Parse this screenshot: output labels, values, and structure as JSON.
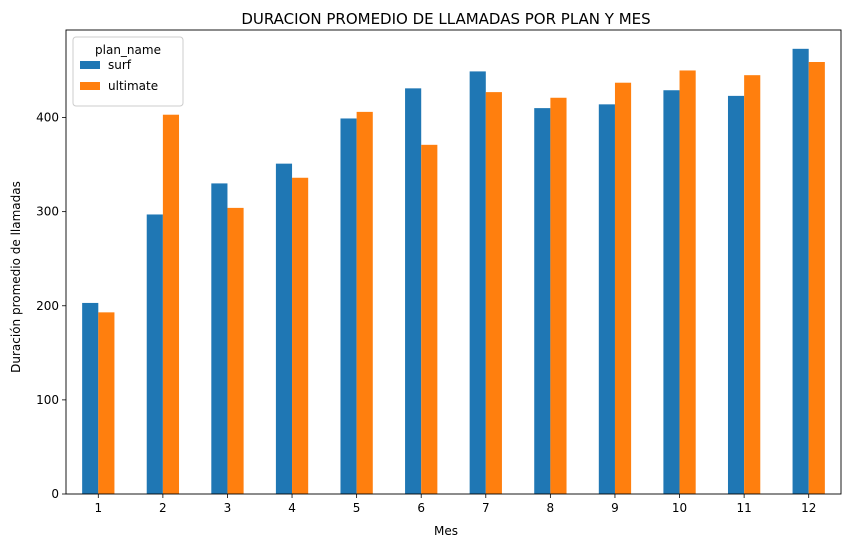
{
  "chart_data": {
    "type": "bar",
    "title": "DURACION PROMEDIO DE LLAMADAS POR PLAN Y MES",
    "xlabel": "Mes",
    "ylabel": "Duración promedio de llamadas",
    "categories": [
      "1",
      "2",
      "3",
      "4",
      "5",
      "6",
      "7",
      "8",
      "9",
      "10",
      "11",
      "12"
    ],
    "ylim": [
      0,
      493
    ],
    "yticks": [
      0,
      100,
      200,
      300,
      400
    ],
    "grid": false,
    "legend": {
      "title": "plan_name",
      "placement": "top-left"
    },
    "series": [
      {
        "name": "surf",
        "color": "#1f77b4",
        "values": [
          203,
          297,
          330,
          351,
          399,
          431,
          449,
          410,
          414,
          429,
          423,
          473
        ]
      },
      {
        "name": "ultimate",
        "color": "#ff7f0e",
        "values": [
          193,
          403,
          304,
          336,
          406,
          371,
          427,
          421,
          437,
          450,
          445,
          459
        ]
      }
    ]
  }
}
